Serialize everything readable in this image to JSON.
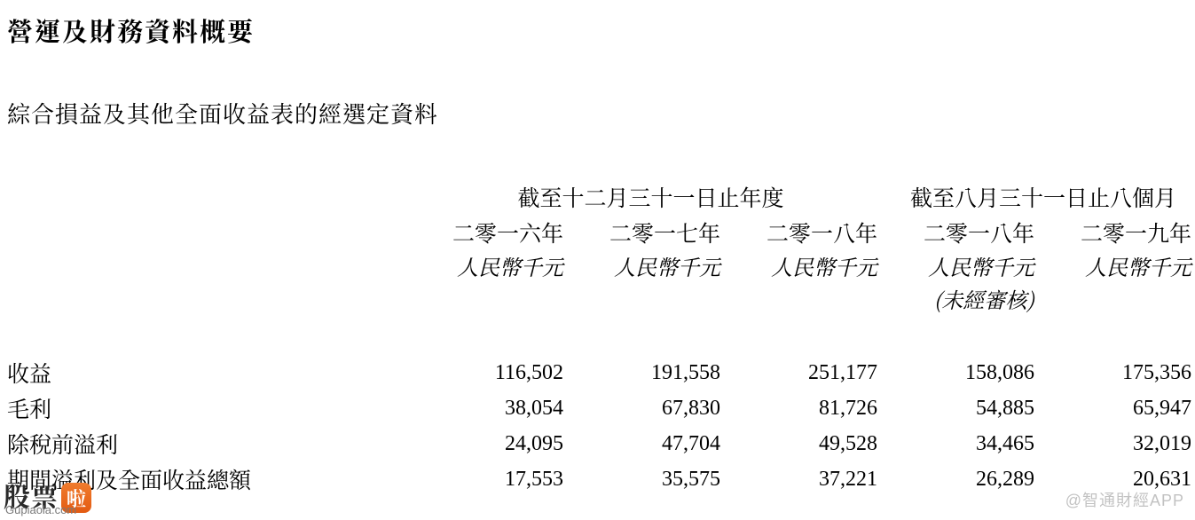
{
  "title": "營運及財務資料概要",
  "subtitle": "綜合損益及其他全面收益表的經選定資料",
  "table": {
    "group_headers": [
      {
        "text": "截至十二月三十一日止年度",
        "span": 3
      },
      {
        "text": "截至八月三十一日止八個月",
        "span": 2
      }
    ],
    "years": [
      "二零一六年",
      "二零一七年",
      "二零一八年",
      "二零一八年",
      "二零一九年"
    ],
    "unit": "人民幣千元",
    "note_col_index": 3,
    "note_text": "(未經審核)",
    "rows": [
      {
        "label": "收益",
        "values": [
          "116,502",
          "191,558",
          "251,177",
          "158,086",
          "175,356"
        ]
      },
      {
        "label": "毛利",
        "values": [
          "38,054",
          "67,830",
          "81,726",
          "54,885",
          "65,947"
        ]
      },
      {
        "label": "除稅前溢利",
        "values": [
          "24,095",
          "47,704",
          "49,528",
          "34,465",
          "32,019"
        ]
      },
      {
        "label": "期間溢利及全面收益總額",
        "values": [
          "17,553",
          "35,575",
          "37,221",
          "26,289",
          "20,631"
        ]
      }
    ],
    "text_color": "#000000",
    "background_color": "#ffffff"
  },
  "watermark": {
    "left_cn": "股票",
    "left_badge": "啦",
    "left_domain": "Gupiaola.com",
    "right_text": "@智通財經APP"
  }
}
